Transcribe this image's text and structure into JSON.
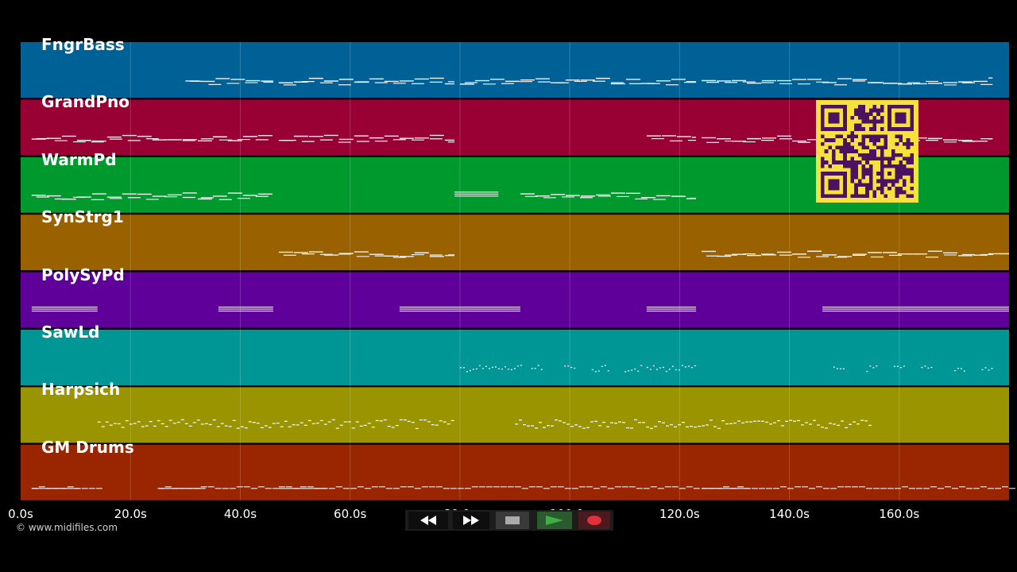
{
  "app": {
    "copyright": "© www.midifiles.com"
  },
  "tracks": [
    {
      "name": "FngrBass",
      "color": "#006196",
      "notes": [
        [
          30,
          46,
          "m"
        ],
        [
          47,
          79,
          "m"
        ],
        [
          80,
          123,
          "m"
        ],
        [
          124,
          177,
          "m"
        ]
      ]
    },
    {
      "name": "GrandPno",
      "color": "#990033",
      "notes": [
        [
          2,
          46,
          "m"
        ],
        [
          47,
          79,
          "m"
        ],
        [
          114,
          123,
          "m"
        ],
        [
          124,
          177,
          "m"
        ]
      ]
    },
    {
      "name": "WarmPd",
      "color": "#00992e",
      "notes": [
        [
          2,
          46,
          "m"
        ],
        [
          79,
          87,
          "s"
        ],
        [
          91,
          123,
          "m"
        ]
      ]
    },
    {
      "name": "SynStrg1",
      "color": "#996100",
      "notes": [
        [
          47,
          79,
          "m"
        ],
        [
          124,
          180,
          "m"
        ]
      ]
    },
    {
      "name": "PolySyPd",
      "color": "#5e0099",
      "notes": [
        [
          2,
          14,
          "s"
        ],
        [
          36,
          46,
          "s"
        ],
        [
          69,
          91,
          "s"
        ],
        [
          114,
          123,
          "s"
        ],
        [
          146,
          180,
          "s"
        ]
      ]
    },
    {
      "name": "SawLd",
      "color": "#009696",
      "notes": [
        [
          80,
          91,
          "d"
        ],
        [
          93,
          95,
          "d"
        ],
        [
          99,
          101,
          "d"
        ],
        [
          104,
          107,
          "d"
        ],
        [
          110,
          113,
          "d"
        ],
        [
          114,
          123,
          "d"
        ],
        [
          148,
          150,
          "d"
        ],
        [
          154,
          156,
          "d"
        ],
        [
          159,
          161,
          "d"
        ],
        [
          164,
          166,
          "d"
        ],
        [
          170,
          172,
          "d"
        ],
        [
          175,
          177,
          "d"
        ]
      ]
    },
    {
      "name": "Harpsich",
      "color": "#999400",
      "notes": [
        [
          14,
          79,
          "h"
        ],
        [
          90,
          155,
          "h"
        ]
      ]
    },
    {
      "name": "GM Drums",
      "color": "#992600",
      "notes": [
        [
          2,
          14,
          "r"
        ],
        [
          25,
          46,
          "r"
        ],
        [
          47,
          123,
          "r"
        ],
        [
          124,
          180,
          "r"
        ]
      ]
    }
  ],
  "timeline": {
    "x_min": 0,
    "x_max": 180,
    "ticks": [
      {
        "t": 0,
        "label": "0.0s"
      },
      {
        "t": 20,
        "label": "20.0s"
      },
      {
        "t": 40,
        "label": "40.0s"
      },
      {
        "t": 60,
        "label": "60.0s"
      },
      {
        "t": 80,
        "label": "80.0s"
      },
      {
        "t": 100,
        "label": "100.0s"
      },
      {
        "t": 120,
        "label": "120.0s"
      },
      {
        "t": 140,
        "label": "140.0s"
      },
      {
        "t": 160,
        "label": "160.0s"
      }
    ]
  },
  "transport": {
    "rewind_icon": "rewind-icon",
    "forward_icon": "fast-forward-icon",
    "stop_icon": "stop-icon",
    "play_icon": "play-icon",
    "record_icon": "record-icon",
    "play_color": "#3cb044",
    "record_color": "#e0303c"
  },
  "qr_code": {
    "fg": "#4a1260",
    "bg": "#f7e23b"
  }
}
